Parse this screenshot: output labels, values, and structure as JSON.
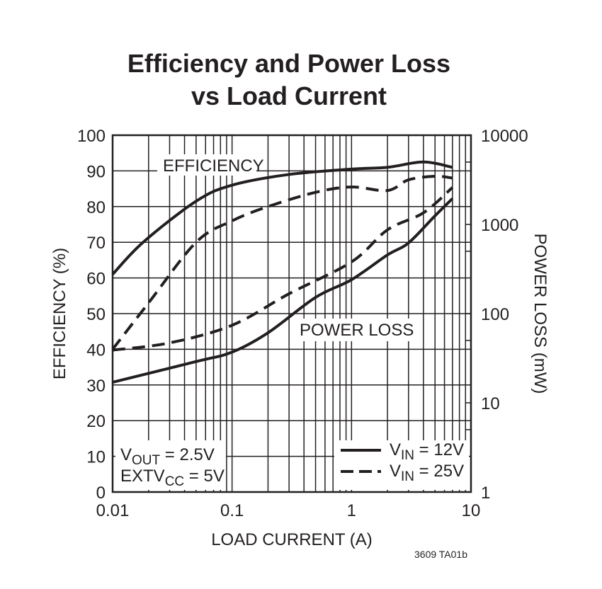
{
  "chart_data": {
    "type": "line",
    "title": [
      "Efficiency and Power Loss",
      "vs Load Current"
    ],
    "xlabel": "LOAD CURRENT (A)",
    "ylabel": "EFFICIENCY (%)",
    "y2label": "POWER LOSS (mW)",
    "xscale": "log",
    "xlim": [
      0.01,
      10
    ],
    "ylim": [
      0,
      100
    ],
    "y2scale": "log",
    "y2lim": [
      1,
      10000
    ],
    "grid": true,
    "xticks": [
      "0.01",
      "0.1",
      "1",
      "10"
    ],
    "xtick_values": [
      0.01,
      0.1,
      1,
      10
    ],
    "yticks": [
      "0",
      "10",
      "20",
      "30",
      "40",
      "50",
      "60",
      "70",
      "80",
      "90",
      "100"
    ],
    "y2ticks": [
      "1",
      "10",
      "100",
      "1000",
      "10000"
    ],
    "y2tick_values": [
      1,
      10,
      100,
      1000,
      10000
    ],
    "annotations": {
      "efficiency": "EFFICIENCY",
      "power_loss": "POWER LOSS",
      "conditions_line1": {
        "main": "V",
        "sub": "OUT",
        "rest": " = 2.5V"
      },
      "conditions_line2": {
        "main": "EXTV",
        "sub": "CC",
        "rest": " = 5V"
      },
      "figure_id": "3609 TA01b"
    },
    "legend": {
      "placement": "bottom-right",
      "entries": [
        {
          "main": "V",
          "sub": "IN",
          "rest": " = 12V",
          "style": "solid"
        },
        {
          "main": "V",
          "sub": "IN",
          "rest": " = 25V",
          "style": "dashed"
        }
      ]
    },
    "series": [
      {
        "group": "efficiency",
        "axis": "left",
        "style": "solid",
        "x": [
          0.01,
          0.018,
          0.05,
          0.1,
          0.3,
          1,
          2,
          4,
          7
        ],
        "y": [
          61,
          70,
          81.5,
          86,
          89,
          90.5,
          91,
          92.5,
          91
        ]
      },
      {
        "group": "efficiency",
        "axis": "left",
        "style": "dashed",
        "x": [
          0.01,
          0.02,
          0.05,
          0.1,
          0.2,
          0.5,
          1,
          2,
          3,
          5,
          7
        ],
        "y": [
          40,
          53,
          70,
          76,
          80,
          84,
          85.5,
          84.5,
          87.5,
          88.5,
          88
        ]
      },
      {
        "group": "power_loss",
        "axis": "right",
        "style": "solid",
        "x": [
          0.01,
          0.05,
          0.1,
          0.2,
          0.5,
          1,
          2,
          3,
          5,
          7
        ],
        "y": [
          17,
          29,
          37,
          61,
          152,
          240,
          455,
          620,
          1250,
          1950
        ]
      },
      {
        "group": "power_loss",
        "axis": "right",
        "style": "dashed",
        "x": [
          0.01,
          0.03,
          0.1,
          0.3,
          1,
          2,
          4,
          7
        ],
        "y": [
          39,
          47,
          74,
          167,
          380,
          870,
          1350,
          2600
        ]
      }
    ],
    "colors": {
      "ink": "#231f20",
      "background": "#ffffff"
    }
  }
}
